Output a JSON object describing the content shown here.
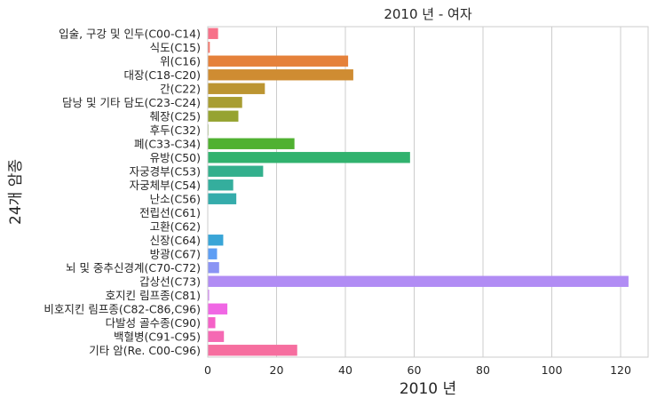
{
  "chart_data": {
    "type": "bar",
    "orientation": "horizontal",
    "title": "2010 년 - 여자",
    "xlabel": "2010 년",
    "ylabel": "24개 암종",
    "xlim": [
      0,
      128
    ],
    "xticks": [
      0,
      20,
      40,
      60,
      80,
      100,
      120
    ],
    "grid": "vertical",
    "categories": [
      "입술, 구강 및 인두(C00-C14)",
      "식도(C15)",
      "위(C16)",
      "대장(C18-C20)",
      "간(C22)",
      "담낭 및 기타 담도(C23-C24)",
      "췌장(C25)",
      "후두(C32)",
      "폐(C33-C34)",
      "유방(C50)",
      "자궁경부(C53)",
      "자궁체부(C54)",
      "난소(C56)",
      "전립선(C61)",
      "고환(C62)",
      "신장(C64)",
      "방광(C67)",
      "뇌 및 중추신경계(C70-C72)",
      "갑상선(C73)",
      "호지킨 림프종(C81)",
      "비호지킨 림프종(C82-C86,C96)",
      "다발성 골수종(C90)",
      "백혈병(C91-C95)",
      "기타 암(Re. C00-C96)"
    ],
    "values": [
      3.0,
      0.6,
      40.8,
      42.3,
      16.6,
      10.0,
      8.9,
      0.2,
      25.2,
      58.8,
      16.1,
      7.4,
      8.3,
      0,
      0,
      4.5,
      2.7,
      3.3,
      122.3,
      0.4,
      5.7,
      2.2,
      4.7,
      26.0
    ],
    "colors": [
      "#f77189",
      "#f6766a",
      "#e5813a",
      "#cf8c32",
      "#bc9532",
      "#a89d32",
      "#96a331",
      "#7eaa31",
      "#50b131",
      "#31b26e",
      "#33b08d",
      "#34ae9d",
      "#35acab",
      "#36aab9",
      "#37a8c7",
      "#39a5d7",
      "#5e9ef4",
      "#8a94f4",
      "#b18cf4",
      "#d17ef4",
      "#f067e4",
      "#f561c7",
      "#f569b3",
      "#f66e9f"
    ]
  }
}
